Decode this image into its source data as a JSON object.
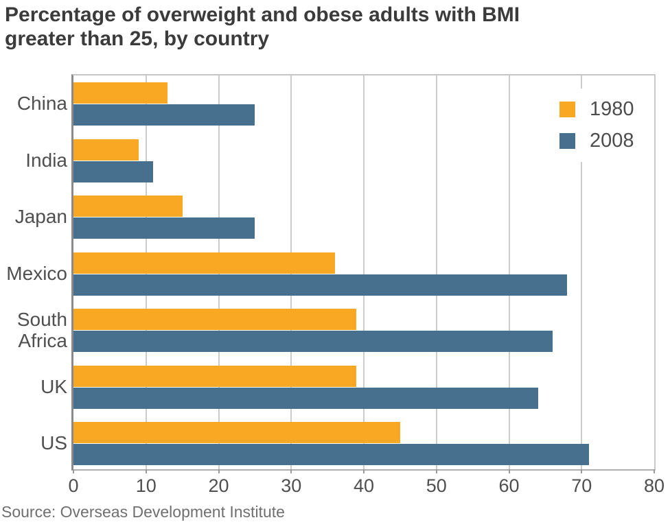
{
  "title_lines": [
    "Percentage of overweight and obese adults with BMI",
    "greater than 25, by country"
  ],
  "source": "Source: Overseas Development Institute",
  "chart_data": {
    "type": "bar",
    "orientation": "horizontal",
    "title": "Percentage of overweight and obese adults with BMI greater than 25, by country",
    "categories": [
      "China",
      "India",
      "Japan",
      "Mexico",
      "South Africa",
      "UK",
      "US"
    ],
    "series": [
      {
        "name": "1980",
        "color": "#F8A823",
        "values": [
          13,
          9,
          15,
          36,
          39,
          39,
          45
        ]
      },
      {
        "name": "2008",
        "color": "#47708F",
        "values": [
          25,
          11,
          25,
          68,
          66,
          64,
          71
        ]
      }
    ],
    "xlim": [
      0,
      80
    ],
    "xticks": [
      0,
      10,
      20,
      30,
      40,
      50,
      60,
      70,
      80
    ],
    "xlabel": "",
    "ylabel": "",
    "grid": true,
    "grid_color": "#cccccc",
    "legend_position": "top-right",
    "source": "Source: Overseas Development Institute"
  }
}
